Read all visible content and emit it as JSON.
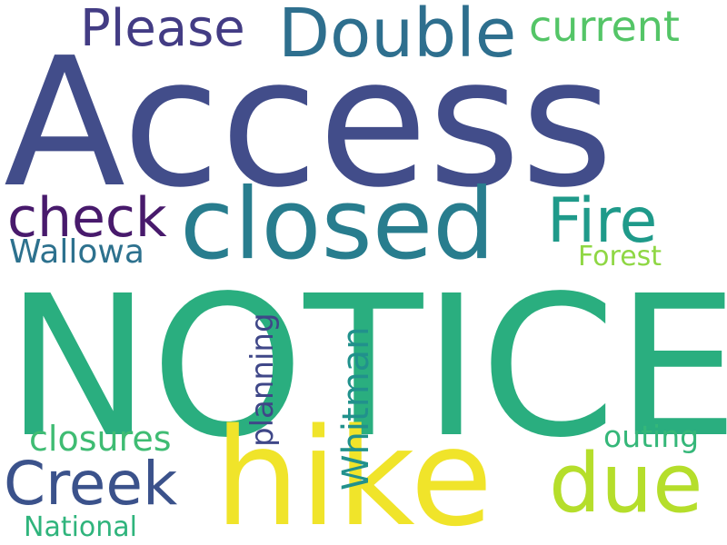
{
  "words": {
    "access": {
      "text": "Access",
      "color": "#424d8a"
    },
    "notice": {
      "text": "NOTICE",
      "color": "#2aae7f"
    },
    "hike": {
      "text": "hike",
      "color": "#f0e42a"
    },
    "closed": {
      "text": "closed",
      "color": "#287d8e"
    },
    "double": {
      "text": "Double",
      "color": "#2e6f8e"
    },
    "please": {
      "text": "Please",
      "color": "#433c84"
    },
    "current": {
      "text": "current",
      "color": "#54c567"
    },
    "fire": {
      "text": "Fire",
      "color": "#1f9a8a"
    },
    "check": {
      "text": "check",
      "color": "#481a6c"
    },
    "wallowa": {
      "text": "Wallowa",
      "color": "#2d718e"
    },
    "forest": {
      "text": "Forest",
      "color": "#8fd744"
    },
    "due": {
      "text": "due",
      "color": "#b5de2b"
    },
    "creek": {
      "text": "Creek",
      "color": "#3b528b"
    },
    "closures": {
      "text": "closures",
      "color": "#3fbc73"
    },
    "planning": {
      "text": "planning",
      "color": "#3f4788"
    },
    "whitman": {
      "text": "Whitman",
      "color": "#21918c"
    },
    "outing": {
      "text": "outing",
      "color": "#35b779"
    },
    "national": {
      "text": "National",
      "color": "#2fb47c"
    }
  }
}
